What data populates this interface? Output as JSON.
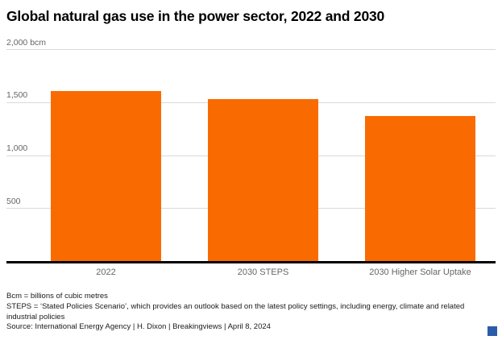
{
  "header": {
    "title": "Global natural gas use in the power sector, 2022 and 2030"
  },
  "chart_data": {
    "type": "bar",
    "categories": [
      "2022",
      "2030 STEPS",
      "2030 Higher Solar Uptake"
    ],
    "values": [
      1610,
      1540,
      1380
    ],
    "title": "Global natural gas use in the power sector, 2022 and 2030",
    "xlabel": "",
    "ylabel": "bcm",
    "ylim": [
      0,
      2000
    ],
    "yticks": [
      500,
      1000,
      1500,
      2000
    ],
    "ytick_labels": [
      "500",
      "1,000",
      "1,500",
      "2,000 bcm"
    ],
    "bar_color": "#f96b00",
    "grid": true,
    "legend": "none"
  },
  "footnotes": {
    "note1": "Bcm = billions of cubic metres",
    "note2": "STEPS = ‘Stated Policies Scenario’, which provides an outlook based on the latest policy settings, including energy, climate and related industrial policies",
    "source": "Source: International Energy Agency | H. Dixon | Breakingviews | April 8, 2024"
  },
  "branding": {
    "mark": "breakingviews-blue-square",
    "color": "#2a5caa"
  }
}
